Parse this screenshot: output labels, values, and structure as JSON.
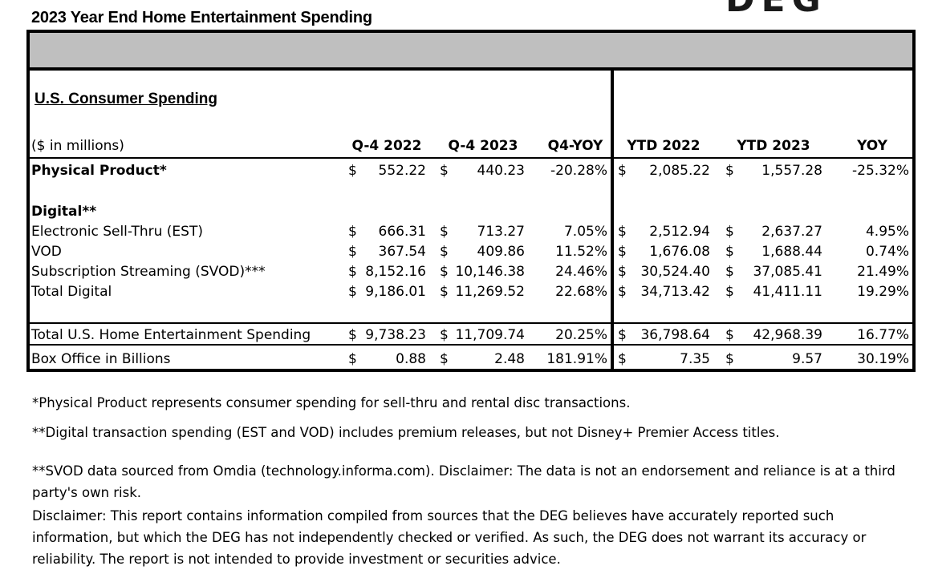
{
  "title": "2023 Year End Home Entertainment Spending",
  "logo_text": "DEG",
  "section_title": "U.S. Consumer Spending",
  "units_label": "($ in millions)",
  "columns": [
    "Q-4 2022",
    "Q-4 2023",
    "Q4-YOY",
    "YTD 2022",
    "YTD 2023",
    "YOY"
  ],
  "currency_symbol": "$",
  "rows": [
    {
      "label": "Physical Product*",
      "bold": true,
      "q4_2022": "552.22",
      "q4_2023": "440.23",
      "q4_yoy": "-20.28%",
      "ytd_2022": "2,085.22",
      "ytd_2023": "1,557.28",
      "yoy": "-25.32%"
    },
    {
      "label": "Digital**",
      "bold": true
    },
    {
      "label": "Electronic Sell-Thru (EST)",
      "q4_2022": "666.31",
      "q4_2023": "713.27",
      "q4_yoy": "7.05%",
      "ytd_2022": "2,512.94",
      "ytd_2023": "2,637.27",
      "yoy": "4.95%"
    },
    {
      "label": "VOD",
      "q4_2022": "367.54",
      "q4_2023": "409.86",
      "q4_yoy": "11.52%",
      "ytd_2022": "1,676.08",
      "ytd_2023": "1,688.44",
      "yoy": "0.74%"
    },
    {
      "label": "Subscription Streaming  (SVOD)***",
      "q4_2022": "8,152.16",
      "q4_2023": "10,146.38",
      "q4_yoy": "24.46%",
      "ytd_2022": "30,524.40",
      "ytd_2023": "37,085.41",
      "yoy": "21.49%"
    },
    {
      "label": "Total Digital",
      "q4_2022": "9,186.01",
      "q4_2023": "11,269.52",
      "q4_yoy": "22.68%",
      "ytd_2022": "34,713.42",
      "ytd_2023": "41,411.11",
      "yoy": "19.29%"
    },
    {
      "label": "Total U.S. Home Entertainment Spending",
      "q4_2022": "9,738.23",
      "q4_2023": "11,709.74",
      "q4_yoy": "20.25%",
      "ytd_2022": "36,798.64",
      "ytd_2023": "42,968.39",
      "yoy": "16.77%"
    },
    {
      "label": "Box Office in Billions",
      "q4_2022": "0.88",
      "q4_2023": "2.48",
      "q4_yoy": "181.91%",
      "ytd_2022": "7.35",
      "ytd_2023": "9.57",
      "yoy": "30.19%"
    }
  ],
  "footnotes": [
    "*Physical Product  represents consumer spending for sell-thru and rental disc transactions.",
    "**Digital transaction spending (EST and VOD) includes premium releases, but not Disney+ Premier Access titles.",
    "**SVOD data sourced from Omdia (technology.informa.com). Disclaimer: The data is not an endorsement and reliance is at a third party's own risk.",
    "Disclaimer:   This report contains information compiled from sources that the DEG believes have accurately reported such information, but which the DEG has not independently checked or verified.  As such, the DEG does not warrant its accuracy or reliability. The report is not intended to provide investment or securities advice."
  ]
}
